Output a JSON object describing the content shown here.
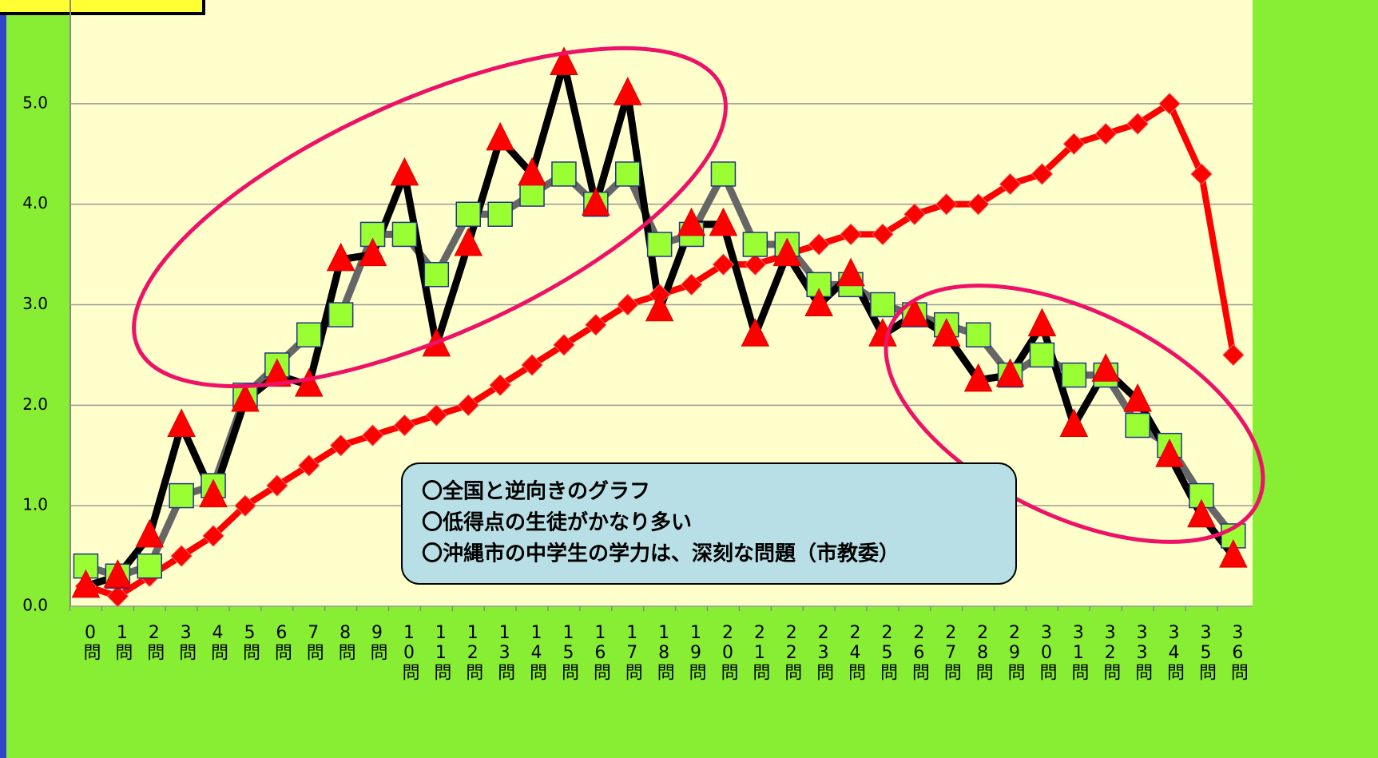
{
  "chart_data": {
    "type": "line",
    "categories": [
      "0問",
      "1問",
      "2問",
      "3問",
      "4問",
      "5問",
      "6問",
      "7問",
      "8問",
      "9問",
      "10問",
      "11問",
      "12問",
      "13問",
      "14問",
      "15問",
      "16問",
      "17問",
      "18問",
      "19問",
      "20問",
      "21問",
      "22問",
      "23問",
      "24問",
      "25問",
      "26問",
      "27問",
      "28問",
      "29問",
      "30問",
      "31問",
      "32問",
      "33問",
      "34問",
      "35問",
      "36問"
    ],
    "series": [
      {
        "color": "#ff0000",
        "marker": "diamond",
        "values": [
          0.2,
          0.1,
          0.3,
          0.5,
          0.7,
          1.0,
          1.2,
          1.4,
          1.6,
          1.7,
          1.8,
          1.9,
          2.0,
          2.2,
          2.4,
          2.6,
          2.8,
          3.0,
          3.1,
          3.2,
          3.4,
          3.4,
          3.5,
          3.6,
          3.7,
          3.7,
          3.9,
          4.0,
          4.0,
          4.2,
          4.3,
          4.6,
          4.7,
          4.8,
          5.0,
          4.3,
          2.5
        ]
      },
      {
        "color": "#666666",
        "marker": "square",
        "values": [
          0.4,
          0.3,
          0.4,
          1.1,
          1.2,
          2.1,
          2.4,
          2.7,
          2.9,
          3.7,
          3.7,
          3.3,
          3.9,
          3.9,
          4.1,
          4.3,
          4.0,
          4.3,
          3.6,
          3.7,
          4.3,
          3.6,
          3.6,
          3.2,
          3.2,
          3.0,
          2.9,
          2.8,
          2.7,
          2.3,
          2.5,
          2.3,
          2.3,
          1.8,
          1.6,
          1.1,
          0.7
        ]
      },
      {
        "color": "#000000",
        "marker": "triangle",
        "values": [
          0.2,
          0.3,
          0.7,
          1.8,
          1.1,
          2.05,
          2.3,
          2.2,
          3.45,
          3.5,
          4.3,
          2.6,
          3.6,
          4.65,
          4.3,
          5.4,
          4.0,
          5.1,
          2.95,
          3.8,
          3.8,
          2.7,
          3.5,
          3.0,
          3.3,
          2.7,
          2.9,
          2.7,
          2.25,
          2.3,
          2.8,
          1.8,
          2.35,
          2.05,
          1.5,
          0.9,
          0.5
        ]
      }
    ],
    "ylim": [
      0,
      6.0
    ],
    "yticks": [
      {
        "value": 0,
        "label": "0.0"
      },
      {
        "value": 1,
        "label": "1.0"
      },
      {
        "value": 2,
        "label": "2.0"
      },
      {
        "value": 3,
        "label": "3.0"
      },
      {
        "value": 4,
        "label": "4.0"
      },
      {
        "value": 5,
        "label": "5.0"
      }
    ],
    "grid": true,
    "annotation": [
      "〇全国と逆向きのグラフ",
      "〇低得点の生徒がかなり多い",
      "〇沖縄市の中学生の学力は、深刻な問題（市教委）"
    ]
  }
}
